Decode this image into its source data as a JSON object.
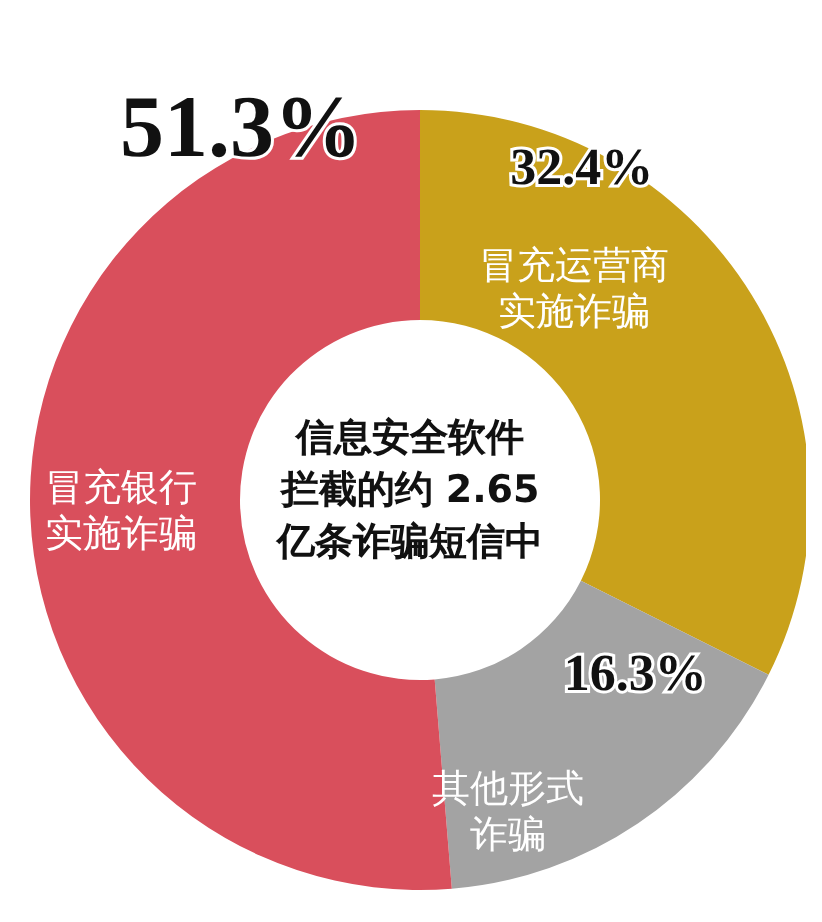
{
  "chart_data": {
    "type": "donut",
    "title": "信息安全软件拦截的约 2.65亿条诈骗短信中",
    "categories": [
      "冒充运营商实施诈骗",
      "其他形式诈骗",
      "冒充银行实施诈骗"
    ],
    "values": [
      32.4,
      16.3,
      51.3
    ],
    "colors": [
      "#c9a11b",
      "#a3a3a3",
      "#d94f5c"
    ],
    "value_labels": [
      "32.4%",
      "16.3%",
      "51.3%"
    ]
  }
}
